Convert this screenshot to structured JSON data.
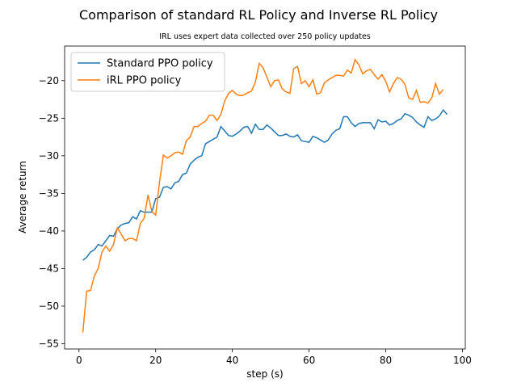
{
  "chart_data": {
    "type": "line",
    "title": "Comparison of standard RL Policy and Inverse RL Policy",
    "subtitle": "IRL uses expert data collected over 250 policy updates",
    "x_label": "step (s)",
    "y_label": "Average return",
    "x": [
      1,
      2,
      3,
      4,
      5,
      6,
      7,
      8,
      9,
      10,
      11,
      12,
      13,
      14,
      15,
      16,
      17,
      18,
      19,
      20,
      21,
      22,
      23,
      24,
      25,
      26,
      27,
      28,
      29,
      30,
      31,
      32,
      33,
      34,
      35,
      36,
      37,
      38,
      39,
      40,
      41,
      42,
      43,
      44,
      45,
      46,
      47,
      48,
      49,
      50,
      51,
      52,
      53,
      54,
      55,
      56,
      57,
      58,
      59,
      60,
      61,
      62,
      63,
      64,
      65,
      66,
      67,
      68,
      69,
      70,
      71,
      72,
      73,
      74,
      75,
      76,
      77,
      78,
      79,
      80,
      81,
      82,
      83,
      84,
      85,
      86,
      87,
      88,
      89,
      90,
      91,
      92,
      93,
      94,
      95,
      96
    ],
    "series": [
      {
        "name": "Standard PPO policy",
        "color": "#1f77b4",
        "values": [
          -43.9,
          -43.5,
          -42.8,
          -42.5,
          -41.8,
          -42.0,
          -41.3,
          -40.6,
          -40.7,
          -39.7,
          -39.2,
          -39.0,
          -38.9,
          -38.1,
          -38.4,
          -37.3,
          -37.5,
          -37.5,
          -37.5,
          -35.7,
          -35.5,
          -34.2,
          -34.1,
          -34.4,
          -33.6,
          -33.4,
          -32.5,
          -32.3,
          -31.1,
          -30.6,
          -30.2,
          -30.0,
          -28.4,
          -28.1,
          -27.8,
          -27.5,
          -26.1,
          -26.7,
          -27.3,
          -27.4,
          -27.1,
          -26.7,
          -26.2,
          -26.1,
          -27.0,
          -25.8,
          -26.5,
          -26.5,
          -25.9,
          -26.3,
          -26.8,
          -27.3,
          -27.3,
          -27.1,
          -27.4,
          -27.5,
          -27.2,
          -28.0,
          -28.1,
          -28.2,
          -27.4,
          -27.6,
          -27.9,
          -28.2,
          -27.9,
          -27.1,
          -26.6,
          -26.4,
          -24.8,
          -24.8,
          -25.6,
          -26.1,
          -25.7,
          -25.6,
          -25.6,
          -25.6,
          -26.4,
          -25.2,
          -25.5,
          -25.4,
          -25.9,
          -25.7,
          -25.3,
          -25.1,
          -24.4,
          -24.6,
          -24.9,
          -25.5,
          -25.9,
          -26.2,
          -24.8,
          -25.3,
          -25.1,
          -24.7,
          -23.9,
          -24.5
        ]
      },
      {
        "name": "iRL PPO policy",
        "color": "#ff7f0e",
        "values": [
          -53.5,
          -48.0,
          -47.9,
          -46.0,
          -45.0,
          -42.8,
          -42.0,
          -42.7,
          -41.8,
          -39.6,
          -40.4,
          -41.3,
          -41.0,
          -41.0,
          -41.3,
          -39.0,
          -38.3,
          -35.2,
          -37.4,
          -37.9,
          -33.5,
          -29.9,
          -30.3,
          -30.0,
          -29.6,
          -29.5,
          -29.8,
          -28.0,
          -27.5,
          -26.1,
          -26.1,
          -25.7,
          -25.4,
          -24.6,
          -24.6,
          -25.3,
          -24.5,
          -22.7,
          -21.7,
          -21.3,
          -21.8,
          -22.0,
          -21.9,
          -21.6,
          -21.4,
          -20.2,
          -17.7,
          -18.3,
          -19.5,
          -20.8,
          -20.0,
          -19.9,
          -21.1,
          -21.5,
          -21.7,
          -18.4,
          -18.1,
          -20.4,
          -20.0,
          -20.8,
          -19.9,
          -21.8,
          -21.6,
          -20.3,
          -19.9,
          -19.6,
          -19.3,
          -19.3,
          -19.4,
          -18.6,
          -19.0,
          -17.2,
          -17.9,
          -19.1,
          -18.7,
          -18.5,
          -19.2,
          -19.8,
          -19.2,
          -20.1,
          -21.5,
          -20.4,
          -19.6,
          -19.8,
          -20.5,
          -22.3,
          -22.5,
          -21.3,
          -22.9,
          -22.8,
          -23.0,
          -22.3,
          -20.4,
          -21.8,
          -21.2,
          null
        ]
      }
    ],
    "xlim": [
      -3.75,
      100.75
    ],
    "ylim": [
      -55.7,
      -15.4
    ],
    "xticks": [
      0,
      20,
      40,
      60,
      80,
      100
    ],
    "yticks": [
      {
        "value": -55,
        "label": "−55"
      },
      {
        "value": -50,
        "label": "−50"
      },
      {
        "value": -45,
        "label": "−45"
      },
      {
        "value": -40,
        "label": "−40"
      },
      {
        "value": -35,
        "label": "−35"
      },
      {
        "value": -30,
        "label": "−30"
      },
      {
        "value": -25,
        "label": "−25"
      },
      {
        "value": -20,
        "label": "−20"
      }
    ],
    "legend": "upper left"
  }
}
